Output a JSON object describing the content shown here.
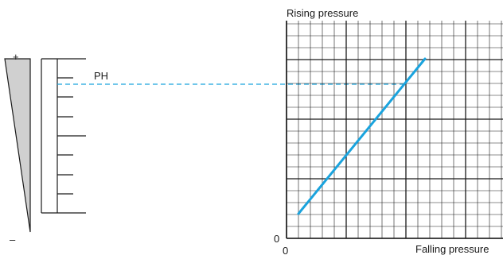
{
  "scale": {
    "plus_sign": "+",
    "minus_sign": "–",
    "marker_label": "PH"
  },
  "graph": {
    "y_axis_label": "Rising pressure",
    "x_axis_label": "Falling pressure",
    "x_origin": "0",
    "y_origin": "0"
  },
  "colors": {
    "line": "#1aa3dd",
    "guide": "#1aa3dd",
    "wedge_fill": "#d0d0d0",
    "grid": "#1a1a1a"
  }
}
